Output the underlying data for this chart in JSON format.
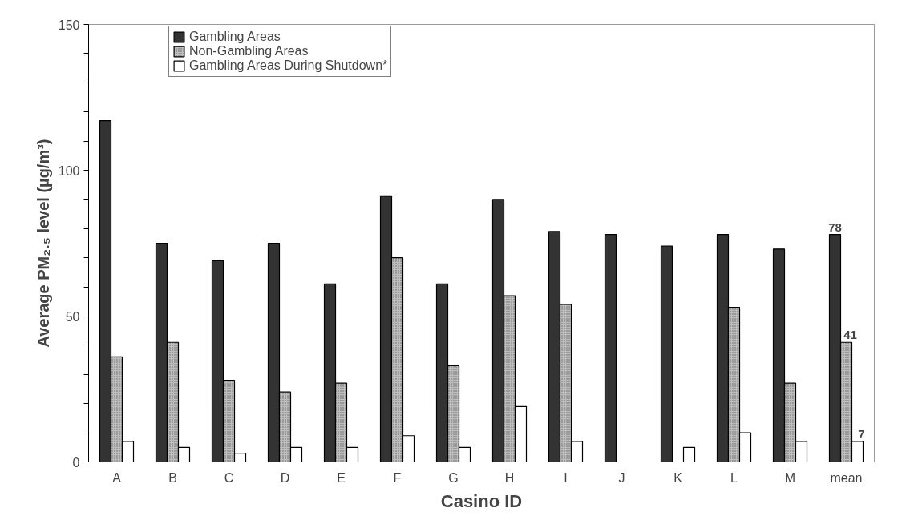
{
  "chart_data": {
    "type": "bar",
    "xlabel": "Casino ID",
    "ylabel": "Average PM₂.₅ level (µg/m³)",
    "categories": [
      "A",
      "B",
      "C",
      "D",
      "E",
      "F",
      "G",
      "H",
      "I",
      "J",
      "K",
      "L",
      "M",
      "mean"
    ],
    "series": [
      {
        "name": "Gambling Areas",
        "color": "#333333",
        "values": [
          117,
          75,
          69,
          75,
          61,
          91,
          61,
          90,
          79,
          78,
          74,
          78,
          73,
          78
        ],
        "value_labels": [
          null,
          null,
          null,
          null,
          null,
          null,
          null,
          null,
          null,
          null,
          null,
          null,
          null,
          "78"
        ]
      },
      {
        "name": "Non-Gambling Areas",
        "color": "#bdbdbd",
        "values": [
          36,
          41,
          28,
          24,
          27,
          70,
          33,
          57,
          54,
          null,
          null,
          53,
          27,
          41
        ],
        "value_labels": [
          null,
          null,
          null,
          null,
          null,
          null,
          null,
          null,
          null,
          null,
          null,
          null,
          null,
          "41"
        ]
      },
      {
        "name": "Gambling Areas During Shutdown*",
        "color": "#ffffff",
        "values": [
          7,
          5,
          3,
          5,
          5,
          9,
          5,
          19,
          7,
          null,
          5,
          10,
          7,
          7
        ],
        "value_labels": [
          null,
          null,
          null,
          null,
          null,
          null,
          null,
          null,
          null,
          null,
          null,
          null,
          null,
          "7"
        ]
      }
    ],
    "ylim": [
      0,
      150
    ],
    "yticks": [
      0,
      {
        "value": 10,
        "label": null
      },
      {
        "value": 20,
        "label": null
      },
      {
        "value": 30,
        "label": null
      },
      {
        "value": 40,
        "label": null
      },
      50,
      {
        "value": 60,
        "label": null
      },
      {
        "value": 70,
        "label": null
      },
      {
        "value": 80,
        "label": null
      },
      {
        "value": 90,
        "label": null
      },
      100,
      {
        "value": 110,
        "label": null
      },
      {
        "value": 120,
        "label": null
      },
      {
        "value": 130,
        "label": null
      },
      {
        "value": 140,
        "label": null
      },
      150
    ],
    "grid": false,
    "legend": "top left"
  }
}
